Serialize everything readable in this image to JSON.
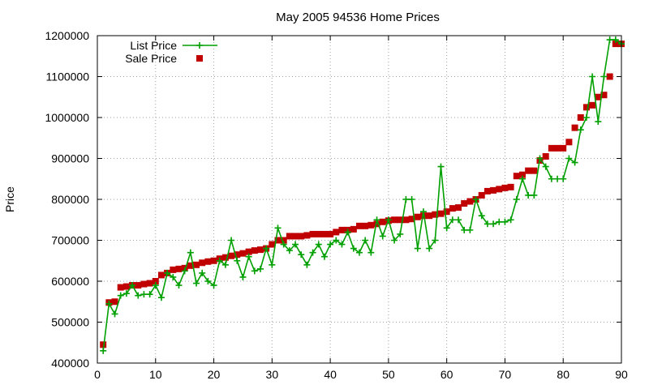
{
  "chart_data": {
    "type": "line",
    "title": "May 2005 94536 Home Prices",
    "xlabel": "",
    "ylabel": "Price",
    "xlim": [
      0,
      90
    ],
    "ylim": [
      400000,
      1200000
    ],
    "xticks": [
      0,
      10,
      20,
      30,
      40,
      50,
      60,
      70,
      80,
      90
    ],
    "yticks": [
      400000,
      500000,
      600000,
      700000,
      800000,
      900000,
      1000000,
      1100000,
      1200000
    ],
    "grid": true,
    "legend_position": "top-left",
    "series": [
      {
        "name": "List Price",
        "style": "line-points",
        "marker": "plus",
        "color": "#00a000",
        "x": [
          1,
          2,
          3,
          4,
          5,
          6,
          7,
          8,
          9,
          10,
          11,
          12,
          13,
          14,
          15,
          16,
          17,
          18,
          19,
          20,
          21,
          22,
          23,
          24,
          25,
          26,
          27,
          28,
          29,
          30,
          31,
          32,
          33,
          34,
          35,
          36,
          37,
          38,
          39,
          40,
          41,
          42,
          43,
          44,
          45,
          46,
          47,
          48,
          49,
          50,
          51,
          52,
          53,
          54,
          55,
          56,
          57,
          58,
          59,
          60,
          61,
          62,
          63,
          64,
          65,
          66,
          67,
          68,
          69,
          70,
          71,
          72,
          73,
          74,
          75,
          76,
          77,
          78,
          79,
          80,
          81,
          82,
          83,
          84,
          85,
          86,
          87,
          88,
          89,
          90
        ],
        "values": [
          430000,
          545000,
          520000,
          565000,
          570000,
          590000,
          565000,
          568000,
          568000,
          590000,
          560000,
          620000,
          610000,
          590000,
          625000,
          670000,
          595000,
          620000,
          600000,
          590000,
          650000,
          640000,
          700000,
          650000,
          610000,
          660000,
          625000,
          630000,
          680000,
          640000,
          730000,
          690000,
          675000,
          690000,
          665000,
          640000,
          670000,
          690000,
          660000,
          690000,
          700000,
          690000,
          720000,
          680000,
          670000,
          700000,
          670000,
          750000,
          710000,
          750000,
          700000,
          715000,
          800000,
          800000,
          680000,
          770000,
          680000,
          700000,
          880000,
          730000,
          750000,
          750000,
          725000,
          725000,
          800000,
          760000,
          740000,
          740000,
          745000,
          745000,
          750000,
          800000,
          850000,
          810000,
          810000,
          900000,
          880000,
          850000,
          850000,
          850000,
          900000,
          890000,
          970000,
          1000000,
          1100000,
          990000,
          1100000,
          1190000,
          1190000,
          1180000
        ]
      },
      {
        "name": "Sale Price",
        "style": "points",
        "marker": "square",
        "color": "#c00000",
        "x": [
          1,
          2,
          3,
          4,
          5,
          6,
          7,
          8,
          9,
          10,
          11,
          12,
          13,
          14,
          15,
          16,
          17,
          18,
          19,
          20,
          21,
          22,
          23,
          24,
          25,
          26,
          27,
          28,
          29,
          30,
          31,
          32,
          33,
          34,
          35,
          36,
          37,
          38,
          39,
          40,
          41,
          42,
          43,
          44,
          45,
          46,
          47,
          48,
          49,
          50,
          51,
          52,
          53,
          54,
          55,
          56,
          57,
          58,
          59,
          60,
          61,
          62,
          63,
          64,
          65,
          66,
          67,
          68,
          69,
          70,
          71,
          72,
          73,
          74,
          75,
          76,
          77,
          78,
          79,
          80,
          81,
          82,
          83,
          84,
          85,
          86,
          87,
          88,
          89,
          90
        ],
        "values": [
          445000,
          548000,
          550000,
          585000,
          587000,
          590000,
          590000,
          593000,
          595000,
          600000,
          615000,
          620000,
          628000,
          630000,
          632000,
          638000,
          640000,
          645000,
          648000,
          650000,
          655000,
          658000,
          662000,
          665000,
          668000,
          672000,
          675000,
          677000,
          680000,
          690000,
          700000,
          700000,
          710000,
          710000,
          710000,
          712000,
          715000,
          715000,
          715000,
          715000,
          720000,
          725000,
          725000,
          727000,
          735000,
          735000,
          737000,
          740000,
          745000,
          748000,
          750000,
          750000,
          750000,
          752000,
          757000,
          760000,
          760000,
          763000,
          765000,
          770000,
          778000,
          780000,
          790000,
          795000,
          800000,
          810000,
          820000,
          822000,
          825000,
          828000,
          830000,
          857000,
          860000,
          870000,
          870000,
          895000,
          905000,
          925000,
          925000,
          925000,
          940000,
          975000,
          1000000,
          1025000,
          1030000,
          1050000,
          1055000,
          1100000,
          1180000,
          1180000
        ]
      }
    ]
  }
}
